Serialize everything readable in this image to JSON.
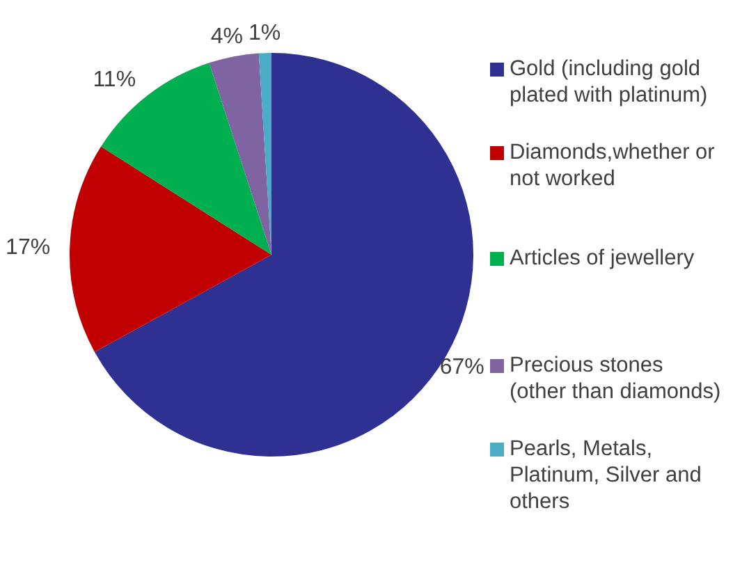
{
  "chart_data": {
    "type": "pie",
    "categories": [
      "Gold (including gold plated with platinum)",
      "Diamonds,whether or not worked",
      "Articles of jewellery",
      "Precious stones (other than diamonds)",
      "Pearls, Metals, Platinum, Silver and others"
    ],
    "values": [
      67,
      17,
      11,
      4,
      1
    ],
    "colors": [
      "#2e3192",
      "#c00000",
      "#00b050",
      "#8064a2",
      "#4bacc6"
    ],
    "value_labels": [
      "67%",
      "17%",
      "11%",
      "4%",
      "1%"
    ],
    "legend": "right"
  }
}
